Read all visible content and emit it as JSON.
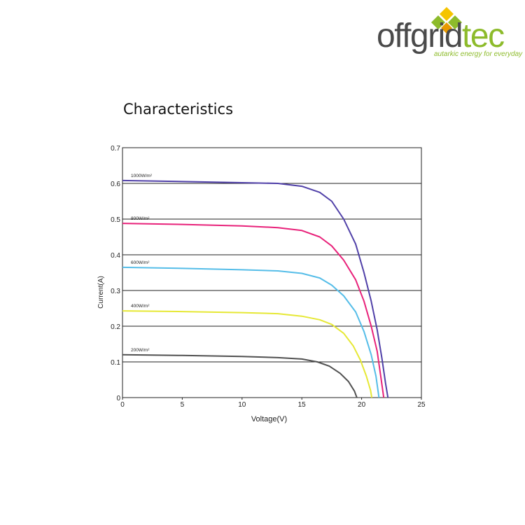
{
  "brand": {
    "name_part1": "offgrid",
    "name_part2": "tec",
    "tagline": "autarkic energy for everyday",
    "colors": {
      "dark": "#4a4a4a",
      "green": "#8dbb2b",
      "yellow": "#f5c400",
      "orange": "#e89a00"
    }
  },
  "section_title": "Characteristics",
  "chart_data": {
    "type": "line",
    "title": "",
    "xlabel": "Voltage(V)",
    "ylabel": "Current(A)",
    "xlim": [
      0,
      25
    ],
    "ylim": [
      0,
      0.7
    ],
    "xticks": [
      "0",
      "5",
      "10",
      "15",
      "20",
      "25"
    ],
    "yticks": [
      "0",
      "0.1",
      "0.2",
      "0.3",
      "0.4",
      "0.5",
      "0.6",
      "0.7"
    ],
    "grid": "horizontal",
    "series": [
      {
        "name": "1000W/m²",
        "color": "#5040a8",
        "points": [
          [
            0,
            0.608
          ],
          [
            5,
            0.605
          ],
          [
            10,
            0.602
          ],
          [
            13,
            0.6
          ],
          [
            15,
            0.592
          ],
          [
            16.5,
            0.575
          ],
          [
            17.5,
            0.55
          ],
          [
            18.5,
            0.5
          ],
          [
            19.5,
            0.43
          ],
          [
            20.2,
            0.35
          ],
          [
            20.8,
            0.27
          ],
          [
            21.3,
            0.19
          ],
          [
            21.7,
            0.11
          ],
          [
            22.0,
            0.04
          ],
          [
            22.2,
            0
          ]
        ]
      },
      {
        "name": "800W/m²",
        "color": "#e8227a",
        "points": [
          [
            0,
            0.488
          ],
          [
            5,
            0.485
          ],
          [
            10,
            0.481
          ],
          [
            13,
            0.476
          ],
          [
            15,
            0.468
          ],
          [
            16.5,
            0.45
          ],
          [
            17.5,
            0.425
          ],
          [
            18.5,
            0.385
          ],
          [
            19.5,
            0.33
          ],
          [
            20.2,
            0.27
          ],
          [
            20.8,
            0.2
          ],
          [
            21.3,
            0.13
          ],
          [
            21.6,
            0.06
          ],
          [
            21.85,
            0
          ]
        ]
      },
      {
        "name": "600W/m²",
        "color": "#55bde8",
        "points": [
          [
            0,
            0.365
          ],
          [
            5,
            0.362
          ],
          [
            10,
            0.358
          ],
          [
            13,
            0.355
          ],
          [
            15,
            0.348
          ],
          [
            16.5,
            0.335
          ],
          [
            17.5,
            0.315
          ],
          [
            18.5,
            0.285
          ],
          [
            19.5,
            0.24
          ],
          [
            20.2,
            0.185
          ],
          [
            20.8,
            0.12
          ],
          [
            21.2,
            0.06
          ],
          [
            21.45,
            0
          ]
        ]
      },
      {
        "name": "400W/m²",
        "color": "#e6e835",
        "points": [
          [
            0,
            0.243
          ],
          [
            5,
            0.241
          ],
          [
            10,
            0.238
          ],
          [
            13,
            0.235
          ],
          [
            15,
            0.228
          ],
          [
            16.5,
            0.218
          ],
          [
            17.5,
            0.205
          ],
          [
            18.5,
            0.18
          ],
          [
            19.3,
            0.145
          ],
          [
            19.9,
            0.105
          ],
          [
            20.4,
            0.06
          ],
          [
            20.75,
            0.02
          ],
          [
            20.85,
            0
          ]
        ]
      },
      {
        "name": "200W/m²",
        "color": "#505050",
        "points": [
          [
            0,
            0.12
          ],
          [
            5,
            0.118
          ],
          [
            10,
            0.115
          ],
          [
            13,
            0.112
          ],
          [
            15,
            0.108
          ],
          [
            16.3,
            0.1
          ],
          [
            17.3,
            0.088
          ],
          [
            18.2,
            0.068
          ],
          [
            18.9,
            0.045
          ],
          [
            19.4,
            0.018
          ],
          [
            19.6,
            0
          ]
        ]
      }
    ]
  }
}
